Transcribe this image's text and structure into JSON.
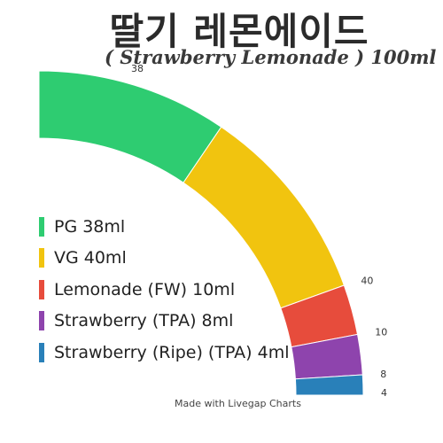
{
  "header": {
    "title": "딸기 레몬에이드",
    "subtitle": "( Strawberry Lemonade ) 100ml"
  },
  "footer": "Made with Livegap Charts",
  "chart_data": {
    "type": "pie",
    "variant": "quarter-donut",
    "categories": [
      "PG 38ml",
      "VG 40ml",
      "Lemonade (FW) 10ml",
      "Strawberry (TPA) 8ml",
      "Strawberry (Ripe) (TPA) 4ml"
    ],
    "values": [
      38,
      40,
      10,
      8,
      4
    ],
    "value_labels": [
      "38",
      "40",
      "10",
      "8",
      "4"
    ],
    "colors": [
      "#2ecc71",
      "#f1c40f",
      "#e74c3c",
      "#8e44ad",
      "#2980b9"
    ],
    "legend_position": "left"
  }
}
